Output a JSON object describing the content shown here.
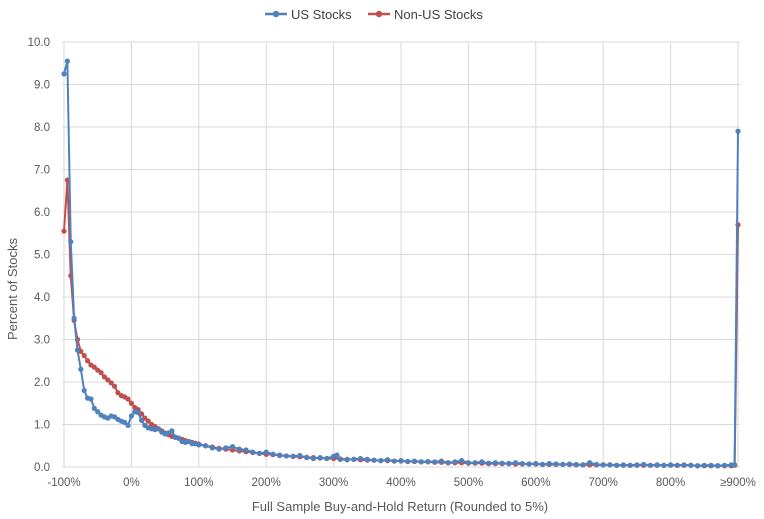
{
  "chart_data": {
    "type": "line",
    "title": "",
    "xlabel": "Full Sample Buy-and-Hold Return (Rounded to 5%)",
    "ylabel": "Percent of Stocks",
    "xlim": [
      -100,
      905
    ],
    "ylim": [
      0,
      10
    ],
    "x_tick_labels": [
      "-100%",
      "0%",
      "100%",
      "200%",
      "300%",
      "400%",
      "500%",
      "600%",
      "700%",
      "800%",
      "≥900%"
    ],
    "y_tick_labels": [
      "0.0",
      "1.0",
      "2.0",
      "3.0",
      "4.0",
      "5.0",
      "6.0",
      "7.0",
      "8.0",
      "9.0",
      "10.0"
    ],
    "grid": true,
    "legend_position": "top",
    "series": [
      {
        "name": "US Stocks",
        "color": "#4F81BD",
        "points": [
          [
            -100,
            9.25
          ],
          [
            -95,
            9.55
          ],
          [
            -90,
            5.3
          ],
          [
            -85,
            3.5
          ],
          [
            -80,
            2.75
          ],
          [
            -75,
            2.3
          ],
          [
            -70,
            1.8
          ],
          [
            -65,
            1.62
          ],
          [
            -60,
            1.6
          ],
          [
            -55,
            1.38
          ],
          [
            -50,
            1.3
          ],
          [
            -45,
            1.22
          ],
          [
            -40,
            1.18
          ],
          [
            -35,
            1.15
          ],
          [
            -30,
            1.2
          ],
          [
            -25,
            1.18
          ],
          [
            -20,
            1.12
          ],
          [
            -15,
            1.08
          ],
          [
            -10,
            1.05
          ],
          [
            -5,
            0.98
          ],
          [
            0,
            1.2
          ],
          [
            5,
            1.3
          ],
          [
            10,
            1.28
          ],
          [
            15,
            1.1
          ],
          [
            20,
            0.98
          ],
          [
            25,
            0.92
          ],
          [
            30,
            0.9
          ],
          [
            35,
            0.88
          ],
          [
            40,
            0.9
          ],
          [
            45,
            0.82
          ],
          [
            50,
            0.78
          ],
          [
            55,
            0.8
          ],
          [
            60,
            0.85
          ],
          [
            65,
            0.7
          ],
          [
            70,
            0.68
          ],
          [
            75,
            0.6
          ],
          [
            80,
            0.58
          ],
          [
            85,
            0.6
          ],
          [
            90,
            0.55
          ],
          [
            95,
            0.55
          ],
          [
            100,
            0.52
          ],
          [
            110,
            0.5
          ],
          [
            120,
            0.45
          ],
          [
            130,
            0.42
          ],
          [
            140,
            0.45
          ],
          [
            150,
            0.48
          ],
          [
            160,
            0.42
          ],
          [
            170,
            0.4
          ],
          [
            180,
            0.35
          ],
          [
            190,
            0.32
          ],
          [
            200,
            0.35
          ],
          [
            210,
            0.3
          ],
          [
            220,
            0.28
          ],
          [
            230,
            0.26
          ],
          [
            240,
            0.25
          ],
          [
            250,
            0.27
          ],
          [
            260,
            0.22
          ],
          [
            270,
            0.2
          ],
          [
            280,
            0.22
          ],
          [
            290,
            0.2
          ],
          [
            300,
            0.25
          ],
          [
            305,
            0.28
          ],
          [
            310,
            0.18
          ],
          [
            320,
            0.17
          ],
          [
            330,
            0.18
          ],
          [
            340,
            0.2
          ],
          [
            350,
            0.18
          ],
          [
            360,
            0.16
          ],
          [
            370,
            0.15
          ],
          [
            380,
            0.17
          ],
          [
            390,
            0.14
          ],
          [
            400,
            0.15
          ],
          [
            410,
            0.13
          ],
          [
            420,
            0.14
          ],
          [
            430,
            0.12
          ],
          [
            440,
            0.13
          ],
          [
            450,
            0.12
          ],
          [
            460,
            0.14
          ],
          [
            470,
            0.1
          ],
          [
            480,
            0.12
          ],
          [
            490,
            0.15
          ],
          [
            500,
            0.1
          ],
          [
            510,
            0.1
          ],
          [
            520,
            0.12
          ],
          [
            530,
            0.09
          ],
          [
            540,
            0.1
          ],
          [
            550,
            0.09
          ],
          [
            560,
            0.08
          ],
          [
            570,
            0.1
          ],
          [
            580,
            0.08
          ],
          [
            590,
            0.07
          ],
          [
            600,
            0.08
          ],
          [
            610,
            0.06
          ],
          [
            620,
            0.08
          ],
          [
            630,
            0.07
          ],
          [
            640,
            0.06
          ],
          [
            650,
            0.07
          ],
          [
            660,
            0.06
          ],
          [
            670,
            0.05
          ],
          [
            680,
            0.1
          ],
          [
            690,
            0.06
          ],
          [
            700,
            0.05
          ],
          [
            710,
            0.05
          ],
          [
            720,
            0.04
          ],
          [
            730,
            0.05
          ],
          [
            740,
            0.04
          ],
          [
            750,
            0.05
          ],
          [
            760,
            0.06
          ],
          [
            770,
            0.04
          ],
          [
            780,
            0.05
          ],
          [
            790,
            0.04
          ],
          [
            800,
            0.05
          ],
          [
            810,
            0.04
          ],
          [
            820,
            0.05
          ],
          [
            830,
            0.04
          ],
          [
            840,
            0.03
          ],
          [
            850,
            0.04
          ],
          [
            860,
            0.04
          ],
          [
            870,
            0.03
          ],
          [
            880,
            0.04
          ],
          [
            890,
            0.05
          ],
          [
            895,
            0.05
          ],
          [
            900,
            7.9
          ]
        ]
      },
      {
        "name": "Non-US Stocks",
        "color": "#C0504D",
        "points": [
          [
            -100,
            5.55
          ],
          [
            -95,
            6.75
          ],
          [
            -90,
            4.5
          ],
          [
            -85,
            3.45
          ],
          [
            -80,
            3.0
          ],
          [
            -75,
            2.72
          ],
          [
            -70,
            2.62
          ],
          [
            -65,
            2.5
          ],
          [
            -60,
            2.4
          ],
          [
            -55,
            2.35
          ],
          [
            -50,
            2.28
          ],
          [
            -45,
            2.22
          ],
          [
            -40,
            2.12
          ],
          [
            -35,
            2.05
          ],
          [
            -30,
            1.98
          ],
          [
            -25,
            1.9
          ],
          [
            -20,
            1.75
          ],
          [
            -15,
            1.68
          ],
          [
            -10,
            1.65
          ],
          [
            -5,
            1.6
          ],
          [
            0,
            1.5
          ],
          [
            5,
            1.4
          ],
          [
            10,
            1.35
          ],
          [
            15,
            1.25
          ],
          [
            20,
            1.15
          ],
          [
            25,
            1.08
          ],
          [
            30,
            1.0
          ],
          [
            35,
            0.95
          ],
          [
            40,
            0.9
          ],
          [
            45,
            0.85
          ],
          [
            50,
            0.8
          ],
          [
            55,
            0.76
          ],
          [
            60,
            0.72
          ],
          [
            65,
            0.7
          ],
          [
            70,
            0.68
          ],
          [
            75,
            0.65
          ],
          [
            80,
            0.62
          ],
          [
            85,
            0.6
          ],
          [
            90,
            0.58
          ],
          [
            95,
            0.56
          ],
          [
            100,
            0.54
          ],
          [
            110,
            0.5
          ],
          [
            120,
            0.47
          ],
          [
            130,
            0.44
          ],
          [
            140,
            0.42
          ],
          [
            150,
            0.4
          ],
          [
            160,
            0.38
          ],
          [
            170,
            0.36
          ],
          [
            180,
            0.34
          ],
          [
            190,
            0.32
          ],
          [
            200,
            0.3
          ],
          [
            210,
            0.29
          ],
          [
            220,
            0.27
          ],
          [
            230,
            0.26
          ],
          [
            240,
            0.25
          ],
          [
            250,
            0.24
          ],
          [
            260,
            0.23
          ],
          [
            270,
            0.22
          ],
          [
            280,
            0.21
          ],
          [
            290,
            0.2
          ],
          [
            300,
            0.2
          ],
          [
            310,
            0.19
          ],
          [
            320,
            0.18
          ],
          [
            330,
            0.18
          ],
          [
            340,
            0.17
          ],
          [
            350,
            0.16
          ],
          [
            360,
            0.16
          ],
          [
            370,
            0.15
          ],
          [
            380,
            0.15
          ],
          [
            390,
            0.14
          ],
          [
            400,
            0.14
          ],
          [
            410,
            0.13
          ],
          [
            420,
            0.13
          ],
          [
            430,
            0.12
          ],
          [
            440,
            0.12
          ],
          [
            450,
            0.11
          ],
          [
            460,
            0.11
          ],
          [
            470,
            0.1
          ],
          [
            480,
            0.1
          ],
          [
            490,
            0.1
          ],
          [
            500,
            0.09
          ],
          [
            510,
            0.09
          ],
          [
            520,
            0.09
          ],
          [
            530,
            0.08
          ],
          [
            540,
            0.08
          ],
          [
            550,
            0.08
          ],
          [
            560,
            0.08
          ],
          [
            570,
            0.07
          ],
          [
            580,
            0.07
          ],
          [
            590,
            0.07
          ],
          [
            600,
            0.07
          ],
          [
            610,
            0.06
          ],
          [
            620,
            0.06
          ],
          [
            630,
            0.06
          ],
          [
            640,
            0.06
          ],
          [
            650,
            0.06
          ],
          [
            660,
            0.05
          ],
          [
            670,
            0.05
          ],
          [
            680,
            0.05
          ],
          [
            690,
            0.05
          ],
          [
            700,
            0.05
          ],
          [
            710,
            0.05
          ],
          [
            720,
            0.04
          ],
          [
            730,
            0.04
          ],
          [
            740,
            0.04
          ],
          [
            750,
            0.04
          ],
          [
            760,
            0.04
          ],
          [
            770,
            0.04
          ],
          [
            780,
            0.04
          ],
          [
            790,
            0.04
          ],
          [
            800,
            0.04
          ],
          [
            810,
            0.04
          ],
          [
            820,
            0.04
          ],
          [
            830,
            0.04
          ],
          [
            840,
            0.03
          ],
          [
            850,
            0.03
          ],
          [
            860,
            0.03
          ],
          [
            870,
            0.03
          ],
          [
            880,
            0.03
          ],
          [
            890,
            0.03
          ],
          [
            895,
            0.04
          ],
          [
            900,
            5.7
          ]
        ]
      }
    ]
  }
}
